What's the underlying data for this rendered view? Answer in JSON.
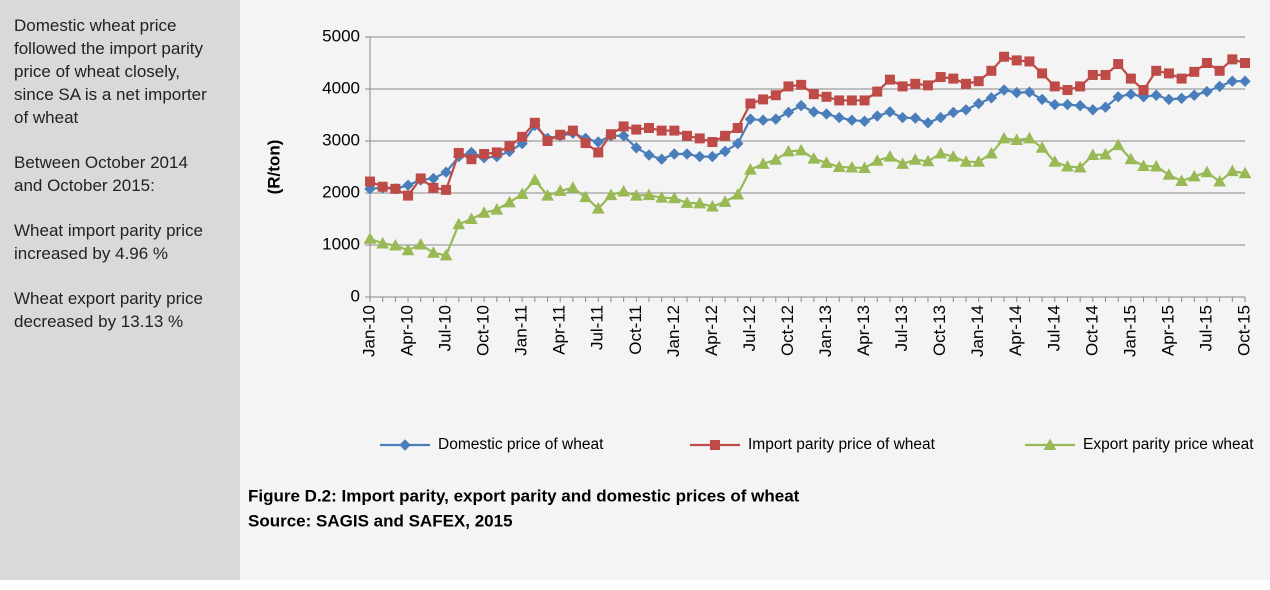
{
  "sidebar": {
    "paragraphs": [
      "Domestic wheat price followed the import parity price of wheat closely, since SA is a net importer of wheat",
      "Between October 2014 and October 2015:",
      "Wheat import parity price increased by 4.96 %",
      "Wheat export parity price decreased by 13.13 %"
    ]
  },
  "chart_data": {
    "type": "line",
    "title": "Figure D.2: Import parity, export parity and domestic prices of wheat",
    "source": "Source: SAGIS and SAFEX, 2015",
    "y_label": "(R/ton)",
    "categories": [
      "Jan-10",
      null,
      null,
      "Apr-10",
      null,
      null,
      "Jul-10",
      null,
      null,
      "Oct-10",
      null,
      null,
      "Jan-11",
      null,
      null,
      "Apr-11",
      null,
      null,
      "Jul-11",
      null,
      null,
      "Oct-11",
      null,
      null,
      "Jan-12",
      null,
      null,
      "Apr-12",
      null,
      null,
      "Jul-12",
      null,
      null,
      "Oct-12",
      null,
      null,
      "Jan-13",
      null,
      null,
      "Apr-13",
      null,
      null,
      "Jul-13",
      null,
      null,
      "Oct-13",
      null,
      null,
      "Jan-14",
      null,
      null,
      "Apr-14",
      null,
      null,
      "Jul-14",
      null,
      null,
      "Oct-14",
      null,
      null,
      "Jan-15",
      null,
      null,
      "Apr-15",
      null,
      null,
      "Jul-15",
      null,
      null,
      "Oct-15"
    ],
    "series": [
      {
        "name": "Domestic price of wheat",
        "color": "#4a7ebb",
        "marker": "diamond",
        "values": [
          2080,
          2100,
          2080,
          2150,
          2250,
          2280,
          2400,
          2700,
          2780,
          2680,
          2700,
          2800,
          2950,
          3300,
          3050,
          3100,
          3150,
          3050,
          2980,
          3100,
          3100,
          2870,
          2730,
          2650,
          2750,
          2750,
          2700,
          2700,
          2800,
          2950,
          3420,
          3400,
          3420,
          3550,
          3680,
          3560,
          3520,
          3450,
          3400,
          3380,
          3480,
          3560,
          3450,
          3440,
          3350,
          3450,
          3550,
          3600,
          3720,
          3830,
          3980,
          3930,
          3940,
          3800,
          3700,
          3700,
          3680,
          3600,
          3650,
          3850,
          3900,
          3850,
          3880,
          3800,
          3820,
          3880,
          3950,
          4050,
          4150,
          4150
        ]
      },
      {
        "name": "Import parity price of wheat",
        "color": "#be4b48",
        "marker": "square",
        "values": [
          2220,
          2120,
          2080,
          1950,
          2280,
          2100,
          2060,
          2770,
          2650,
          2750,
          2780,
          2900,
          3080,
          3350,
          3000,
          3120,
          3200,
          2960,
          2780,
          3130,
          3280,
          3220,
          3250,
          3200,
          3200,
          3100,
          3050,
          2980,
          3100,
          3250,
          3720,
          3800,
          3880,
          4050,
          4080,
          3900,
          3850,
          3780,
          3780,
          3780,
          3950,
          4180,
          4050,
          4100,
          4070,
          4230,
          4200,
          4100,
          4150,
          4350,
          4620,
          4550,
          4530,
          4300,
          4050,
          3980,
          4050,
          4270,
          4270,
          4480,
          4200,
          3980,
          4350,
          4300,
          4200,
          4330,
          4500,
          4350,
          4570,
          4500
        ]
      },
      {
        "name": "Export parity price wheat",
        "color": "#98b954",
        "marker": "triangle",
        "values": [
          1120,
          1030,
          990,
          900,
          1010,
          850,
          800,
          1400,
          1500,
          1620,
          1680,
          1820,
          1980,
          2250,
          1950,
          2040,
          2100,
          1920,
          1700,
          1960,
          2030,
          1950,
          1960,
          1910,
          1900,
          1810,
          1800,
          1740,
          1830,
          1970,
          2450,
          2560,
          2640,
          2800,
          2820,
          2660,
          2580,
          2500,
          2490,
          2480,
          2620,
          2700,
          2560,
          2640,
          2610,
          2760,
          2700,
          2600,
          2600,
          2760,
          3050,
          3020,
          3050,
          2870,
          2600,
          2510,
          2490,
          2730,
          2740,
          2920,
          2650,
          2520,
          2510,
          2350,
          2230,
          2320,
          2400,
          2220,
          2420,
          2380
        ]
      }
    ],
    "ylim": [
      0,
      5000
    ],
    "yticks": [
      0,
      1000,
      2000,
      3000,
      4000,
      5000
    ],
    "grid": true,
    "legend": "bottom"
  }
}
